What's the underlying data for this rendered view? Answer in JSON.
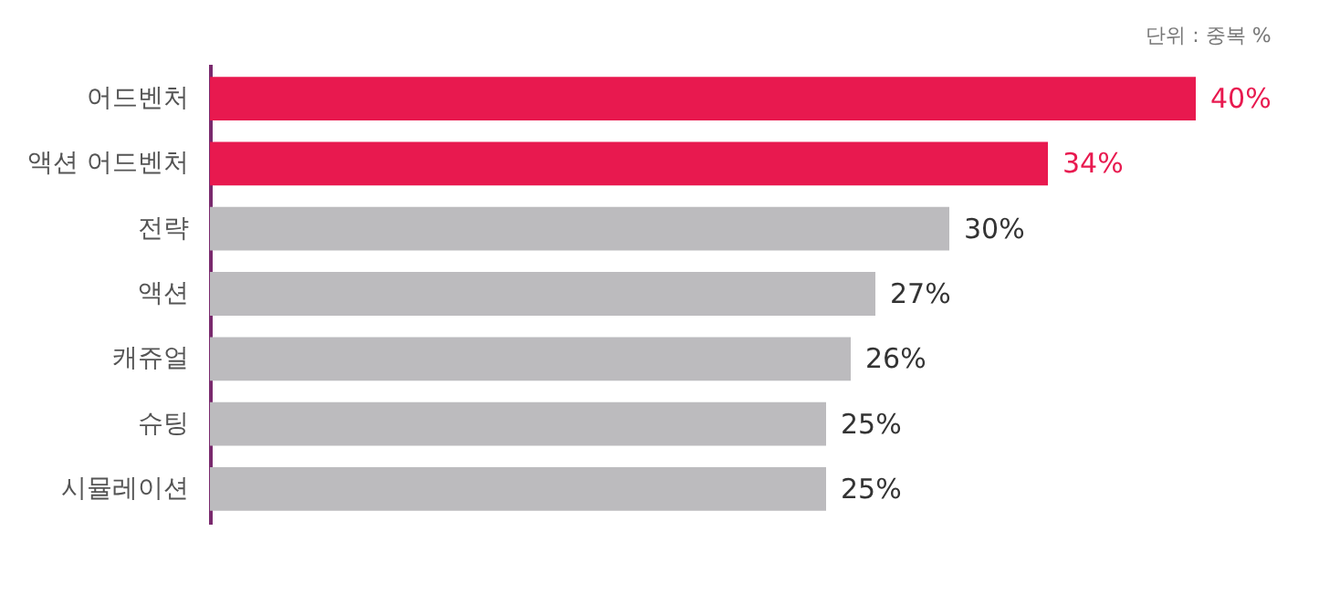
{
  "chart_data": {
    "type": "bar",
    "orientation": "horizontal",
    "categories": [
      "어드벤처",
      "액션 어드벤처",
      "전략",
      "액션",
      "캐쥬얼",
      "슈팅",
      "시뮬레이션"
    ],
    "values": [
      40,
      34,
      30,
      27,
      26,
      25,
      25
    ],
    "value_labels": [
      "40%",
      "34%",
      "30%",
      "27%",
      "26%",
      "25%",
      "25%"
    ],
    "colors": [
      "#e8194f",
      "#e8194f",
      "#bcbbbe",
      "#bcbbbe",
      "#bcbbbe",
      "#bcbbbe",
      "#bcbbbe"
    ],
    "annotations": [
      "단위 : 중복 %"
    ]
  }
}
